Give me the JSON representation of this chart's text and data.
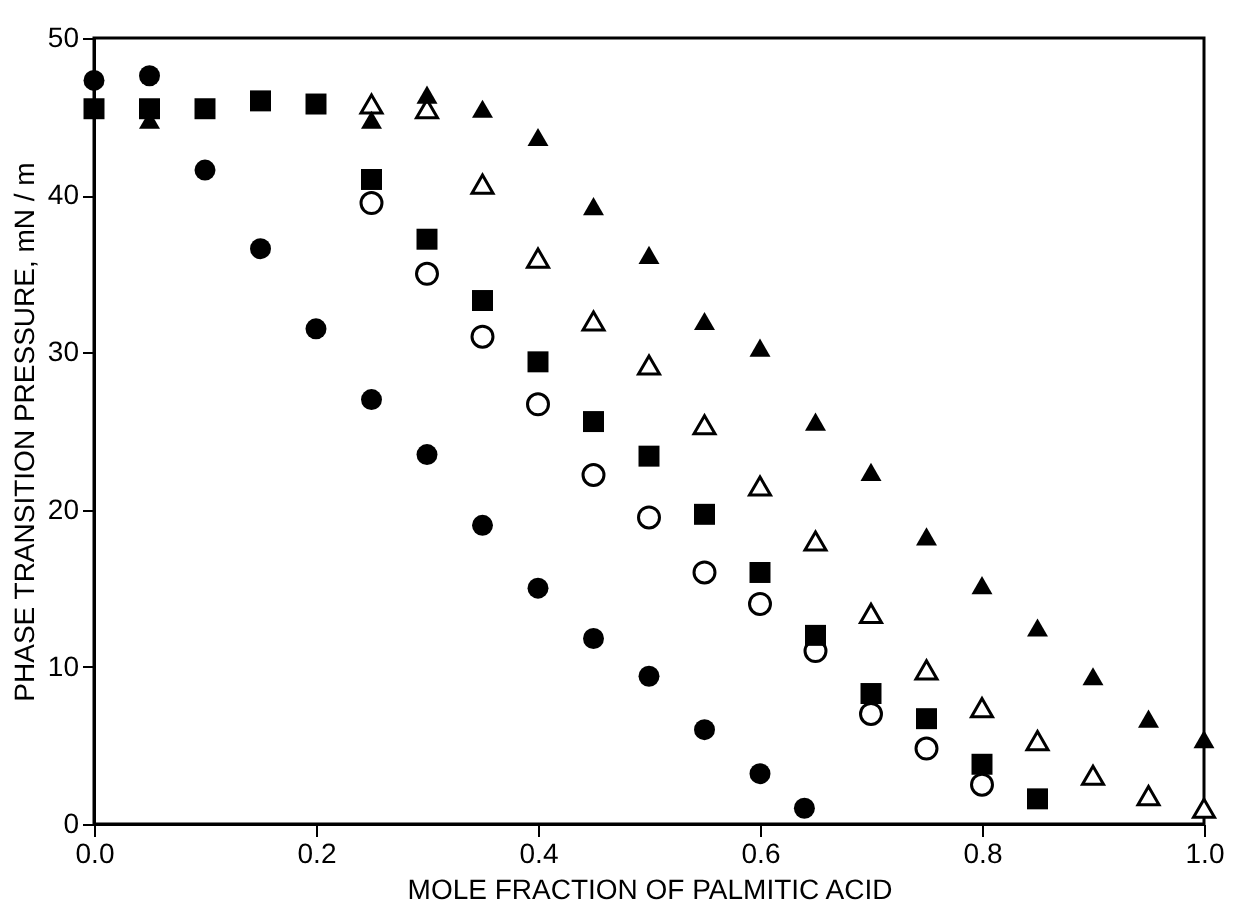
{
  "chart_data": {
    "type": "scatter",
    "xlabel": "MOLE FRACTION OF PALMITIC ACID",
    "ylabel": "PHASE TRANSITION PRESSURE, mN / m",
    "xlim": [
      0,
      1
    ],
    "xticks": [
      {
        "value": 0,
        "label": "0.0"
      },
      {
        "value": 0.2,
        "label": "0.2"
      },
      {
        "value": 0.4,
        "label": "0.4"
      },
      {
        "value": 0.6,
        "label": "0.6"
      },
      {
        "value": 0.8,
        "label": "0.8"
      },
      {
        "value": 1,
        "label": "1.0"
      }
    ],
    "ylim": [
      0,
      50
    ],
    "yticks": [
      0,
      10,
      20,
      30,
      40,
      50
    ],
    "grid": false,
    "series": [
      {
        "color": "#000000",
        "marker": "circle",
        "x": [
          0,
          0.05,
          0.1,
          0.15,
          0.2,
          0.25,
          0.3,
          0.35,
          0.4,
          0.45,
          0.5,
          0.55,
          0.6,
          0.64
        ],
        "values": [
          47.3,
          47.6,
          41.6,
          36.6,
          31.5,
          27,
          23.5,
          19,
          15,
          11.8,
          9.4,
          6,
          3.2,
          1
        ]
      },
      {
        "color": "#000000",
        "marker": "circle",
        "x": [
          0.25,
          0.3,
          0.35,
          0.4,
          0.45,
          0.5,
          0.55,
          0.6,
          0.65,
          0.7,
          0.75,
          0.8
        ],
        "values": [
          39.5,
          35,
          31,
          26.7,
          22.2,
          19.5,
          16,
          14,
          11,
          7,
          4.8,
          2.5
        ]
      },
      {
        "color": "#000000",
        "marker": "square",
        "x": [
          0,
          0.05,
          0.1,
          0.15,
          0.2,
          0.25,
          0.3,
          0.35,
          0.4,
          0.45,
          0.5,
          0.55,
          0.6,
          0.65,
          0.7,
          0.75,
          0.8,
          0.85
        ],
        "values": [
          45.5,
          45.5,
          45.5,
          46,
          45.8,
          41,
          37.2,
          33.3,
          29.4,
          25.6,
          23.4,
          19.7,
          16,
          12,
          8.3,
          6.7,
          3.8,
          1.6
        ]
      },
      {
        "color": "#000000",
        "marker": "triangle",
        "x": [
          0.25,
          0.3,
          0.35,
          0.4,
          0.45,
          0.5,
          0.55,
          0.6,
          0.65,
          0.7,
          0.75,
          0.8,
          0.85,
          0.9,
          0.95,
          1.0
        ],
        "values": [
          45.8,
          45.5,
          40.7,
          36,
          32,
          29.2,
          25.4,
          21.5,
          18,
          13.4,
          9.8,
          7.4,
          5.3,
          3.1,
          1.8,
          1.0
        ]
      },
      {
        "color": "#000000",
        "marker": "triangle",
        "x": [
          0.05,
          0.25,
          0.3,
          0.35,
          0.4,
          0.45,
          0.5,
          0.55,
          0.6,
          0.65,
          0.7,
          0.75,
          0.8,
          0.85,
          0.9,
          0.95,
          1.0
        ],
        "values": [
          44.8,
          44.8,
          46.4,
          45.5,
          43.7,
          39.3,
          36.2,
          32,
          30.3,
          25.6,
          22.4,
          18.3,
          15.2,
          12.5,
          9.4,
          6.7,
          5.4
        ]
      }
    ]
  }
}
